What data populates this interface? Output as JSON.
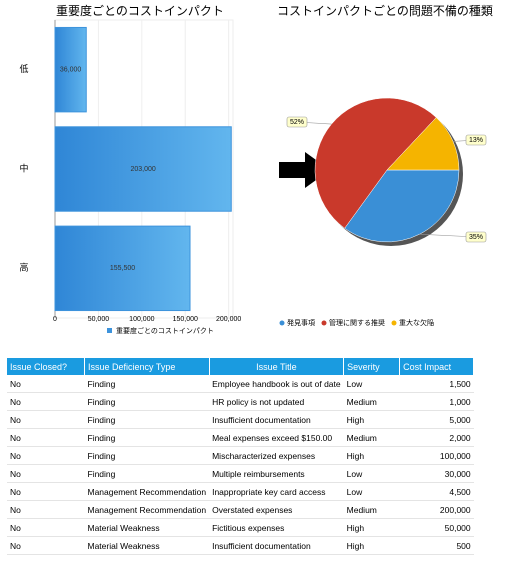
{
  "chart_data": [
    {
      "type": "bar",
      "orientation": "horizontal",
      "title": "重要度ごとのコストインパクト",
      "categories": [
        "低",
        "中",
        "高"
      ],
      "values": [
        36000,
        203000,
        155500
      ],
      "value_labels": [
        "36,000",
        "203,000",
        "155,500"
      ],
      "color": "#3d93dc",
      "series_name": "重要度ごとのコストインパクト",
      "xlim": [
        0,
        205000
      ],
      "xticks": [
        0,
        {
          "value": 50000,
          "label": "50,000"
        },
        {
          "value": 100000,
          "label": "100,000"
        },
        {
          "value": 150000,
          "label": "150,000"
        },
        {
          "value": 200000,
          "label": "200,000"
        }
      ],
      "grid": true
    },
    {
      "type": "pie",
      "title": "コストインパクトごとの問題不備の種類",
      "categories": [
        "発見事項",
        "管理に関する推奨",
        "重大な欠陥"
      ],
      "values": [
        35,
        52,
        13
      ],
      "value_labels": [
        "35%",
        "52%",
        "13%"
      ],
      "colors": [
        "#3a8fd6",
        "#c9392b",
        "#f5b400"
      ]
    }
  ],
  "table": {
    "headers": [
      "Issue Closed?",
      "Issue Deficiency Type",
      "Issue Title",
      "Severity",
      "Cost Impact"
    ],
    "rows": [
      [
        "No",
        "Finding",
        "Employee handbook is out of date",
        "Low",
        "1,500"
      ],
      [
        "No",
        "Finding",
        "HR policy is not updated",
        "Medium",
        "1,000"
      ],
      [
        "No",
        "Finding",
        "Insufficient documentation",
        "High",
        "5,000"
      ],
      [
        "No",
        "Finding",
        "Meal expenses exceed $150.00",
        "Medium",
        "2,000"
      ],
      [
        "No",
        "Finding",
        "Mischaracterized expenses",
        "High",
        "100,000"
      ],
      [
        "No",
        "Finding",
        "Multiple reimbursements",
        "Low",
        "30,000"
      ],
      [
        "No",
        "Management Recommendation",
        "Inappropriate key card access",
        "Low",
        "4,500"
      ],
      [
        "No",
        "Management Recommendation",
        "Overstated expenses",
        "Medium",
        "200,000"
      ],
      [
        "No",
        "Material Weakness",
        "Fictitious expenses",
        "High",
        "50,000"
      ],
      [
        "No",
        "Material Weakness",
        "Insufficient documentation",
        "High",
        "500"
      ]
    ]
  }
}
